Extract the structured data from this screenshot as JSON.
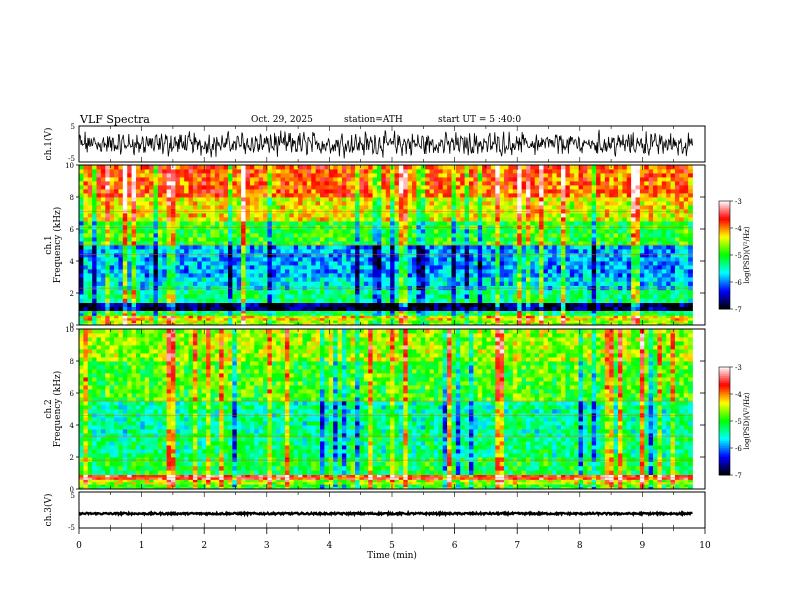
{
  "header": {
    "title": "VLF  Spectra",
    "date": "Oct. 29, 2025",
    "station": "station=ATH",
    "start": "start  UT  =    5  :40:0"
  },
  "chart_data": [
    {
      "type": "line",
      "ylabel": "ch.1(V)",
      "xlim": [
        0,
        10
      ],
      "ylim": [
        -5,
        5
      ],
      "yticks": [
        {
          "v": 5,
          "label": "5"
        },
        {
          "v": -5,
          "label": "-5"
        }
      ],
      "series": [
        {
          "values_note": "noisy waveform",
          "amplitude": 3.2,
          "duration_min": 9.8
        }
      ]
    },
    {
      "type": "heatmap",
      "ylabel": "ch.1\nFrequency (kHz)",
      "xlim": [
        0,
        10
      ],
      "ylim": [
        0,
        10
      ],
      "yticks": [
        0,
        2,
        4,
        6,
        8,
        10
      ],
      "duration_min": 9.8,
      "bands": [
        {
          "fmin": 0.0,
          "fmax": 0.3,
          "level": -4.6
        },
        {
          "fmin": 0.3,
          "fmax": 0.6,
          "level": -4.3
        },
        {
          "fmin": 0.6,
          "fmax": 0.9,
          "level": -5.2
        },
        {
          "fmin": 0.9,
          "fmax": 1.4,
          "level": -6.8
        },
        {
          "fmin": 1.4,
          "fmax": 2.2,
          "level": -5.3
        },
        {
          "fmin": 2.2,
          "fmax": 3.0,
          "level": -5.7
        },
        {
          "fmin": 3.0,
          "fmax": 5.0,
          "level": -5.9
        },
        {
          "fmin": 5.0,
          "fmax": 6.5,
          "level": -5.0
        },
        {
          "fmin": 6.5,
          "fmax": 8.0,
          "level": -4.4
        },
        {
          "fmin": 8.0,
          "fmax": 10.0,
          "level": -3.9
        }
      ],
      "colorbar": {
        "label": "log(PSD)(V²/Hz)",
        "range": [
          -7,
          -3
        ],
        "ticks": [
          "-3",
          "-4",
          "-5",
          "-6",
          "-7"
        ]
      }
    },
    {
      "type": "heatmap",
      "ylabel": "ch.2\nFrequency (kHz)",
      "xlim": [
        0,
        10
      ],
      "ylim": [
        0,
        10
      ],
      "yticks": [
        0,
        2,
        4,
        6,
        8,
        10
      ],
      "duration_min": 9.8,
      "bands": [
        {
          "fmin": 0.0,
          "fmax": 0.3,
          "level": -5.0
        },
        {
          "fmin": 0.3,
          "fmax": 0.6,
          "level": -4.5
        },
        {
          "fmin": 0.6,
          "fmax": 0.9,
          "level": -3.6
        },
        {
          "fmin": 0.9,
          "fmax": 2.0,
          "level": -5.1
        },
        {
          "fmin": 2.0,
          "fmax": 3.5,
          "level": -5.3
        },
        {
          "fmin": 3.5,
          "fmax": 5.5,
          "level": -5.4
        },
        {
          "fmin": 5.5,
          "fmax": 8.0,
          "level": -4.9
        },
        {
          "fmin": 8.0,
          "fmax": 10.0,
          "level": -4.6
        }
      ],
      "colorbar": {
        "label": "log(PSD)(V²/Hz)",
        "range": [
          -7,
          -3
        ],
        "ticks": [
          "-3",
          "-4",
          "-5",
          "-6",
          "-7"
        ]
      }
    },
    {
      "type": "line",
      "ylabel": "ch.3(V)",
      "xlim": [
        0,
        10
      ],
      "ylim": [
        -5,
        5
      ],
      "yticks": [
        {
          "v": 5,
          "label": "5"
        },
        {
          "v": -5,
          "label": "-5"
        }
      ],
      "series": [
        {
          "values_note": "flat near constant",
          "level": -1.0,
          "amplitude": 0.25,
          "duration_min": 9.8
        }
      ]
    }
  ],
  "xaxis": {
    "label": "Time  (min)",
    "ticks": [
      "0",
      "1",
      "2",
      "3",
      "4",
      "5",
      "6",
      "7",
      "8",
      "9",
      "10"
    ]
  },
  "colormap": {
    "stops": [
      "#000000",
      "#0000ff",
      "#00ffff",
      "#00ff00",
      "#ffff00",
      "#ff0000",
      "#ffffff"
    ]
  }
}
